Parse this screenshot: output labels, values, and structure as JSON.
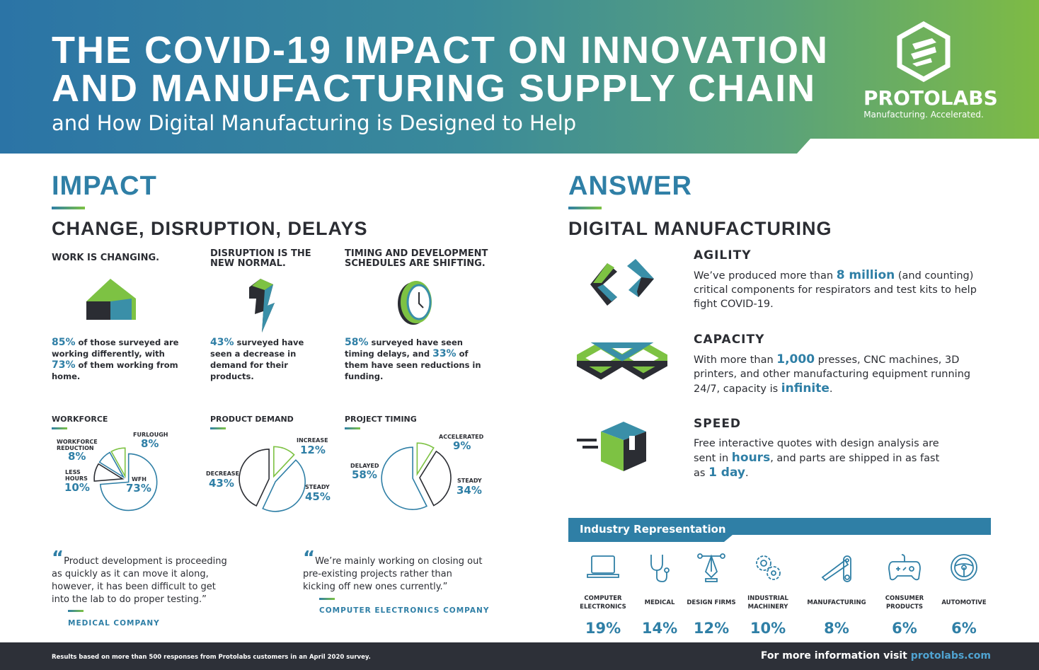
{
  "header": {
    "title_line1": "THE COVID-19 IMPACT ON INNOVATION",
    "title_line2": "AND MANUFACTURING SUPPLY CHAIN",
    "subtitle": "and How Digital Manufacturing is Designed to Help",
    "logo_name": "PROTOLABS",
    "logo_tagline": "Manufacturing. Accelerated."
  },
  "impact": {
    "heading": "IMPACT",
    "subheading": "CHANGE, DISRUPTION, DELAYS",
    "columns": [
      {
        "title": "WORK IS CHANGING.",
        "stat1": "85%",
        "text1": " of those surveyed are working differently, with ",
        "stat2": "73%",
        "text2": " of them working from home."
      },
      {
        "title": "DISRUPTION IS THE NEW NORMAL.",
        "stat1": "43%",
        "text1": " surveyed have seen a decrease in demand for their products."
      },
      {
        "title": "TIMING AND DEVELOPMENT SCHEDULES ARE SHIFTING.",
        "stat1": "58%",
        "text1": " surveyed have seen timing delays, and ",
        "stat2": "33%",
        "text2": " of them have seen reductions in funding."
      }
    ]
  },
  "pies": [
    {
      "title": "WORKFORCE",
      "slices": [
        {
          "label": "WFH",
          "value": 73,
          "color": "#2f7fa6"
        },
        {
          "label": "LESS HOURS",
          "value": 10,
          "color": "#2b2d33"
        },
        {
          "label": "WORKFORCE REDUCTION",
          "value": 8,
          "color": "#2f7fa6"
        },
        {
          "label": "FURLOUGH",
          "value": 8,
          "color": "#7dc243"
        }
      ]
    },
    {
      "title": "PRODUCT DEMAND",
      "slices": [
        {
          "label": "INCREASE",
          "value": 12,
          "color": "#7dc243"
        },
        {
          "label": "STEADY",
          "value": 45,
          "color": "#2f7fa6"
        },
        {
          "label": "DECREASE",
          "value": 43,
          "color": "#2b2d33"
        }
      ]
    },
    {
      "title": "PROJECT TIMING",
      "slices": [
        {
          "label": "ACCELERATED",
          "value": 9,
          "color": "#7dc243"
        },
        {
          "label": "STEADY",
          "value": 34,
          "color": "#2b2d33"
        },
        {
          "label": "DELAYED",
          "value": 58,
          "color": "#2f7fa6"
        }
      ]
    }
  ],
  "quotes": [
    {
      "text": "Product development is proceeding as quickly as it can move it along, however, it has been difficult to get into the lab to do proper testing.”",
      "source": "MEDICAL COMPANY"
    },
    {
      "text": "We’re mainly working on closing out pre-existing projects rather than kicking off new ones currently.”",
      "source": "COMPUTER ELECTRONICS COMPANY"
    }
  ],
  "answer": {
    "heading": "ANSWER",
    "subheading": "DIGITAL MANUFACTURING",
    "items": [
      {
        "title": "AGILITY",
        "a": "We’ve produced more than ",
        "b": "8 million",
        "c": " (and counting) critical components for respirators and test kits to help fight COVID-19.",
        "d": ""
      },
      {
        "title": "CAPACITY",
        "a": "With more than ",
        "b": "1,000",
        "c": " presses, CNC machines, 3D printers, and other manufacturing equipment running 24/7, capacity is ",
        "d": "infinite",
        "e": "."
      },
      {
        "title": "SPEED",
        "a": "Free interactive quotes with design analysis are sent in ",
        "b": "hours",
        "c": ", and parts are shipped in as fast as ",
        "d": "1 day",
        "e": "."
      }
    ]
  },
  "industry": {
    "title": "Industry Representation",
    "items": [
      {
        "name": "COMPUTER ELECTRONICS",
        "pct": "19%",
        "icon": "laptop-icon"
      },
      {
        "name": "MEDICAL",
        "pct": "14%",
        "icon": "stethoscope-icon"
      },
      {
        "name": "DESIGN FIRMS",
        "pct": "12%",
        "icon": "pen-tool-icon"
      },
      {
        "name": "INDUSTRIAL MACHINERY",
        "pct": "10%",
        "icon": "gears-icon"
      },
      {
        "name": "MANUFACTURING",
        "pct": "8%",
        "icon": "robot-arm-icon"
      },
      {
        "name": "CONSUMER PRODUCTS",
        "pct": "6%",
        "icon": "gamepad-icon"
      },
      {
        "name": "AUTOMOTIVE",
        "pct": "6%",
        "icon": "steering-wheel-icon"
      }
    ]
  },
  "footer": {
    "note": "Results based on more than 500 responses from Protolabs customers in an April 2020 survey.",
    "info": "For more information visit ",
    "link": "protolabs.com"
  }
}
